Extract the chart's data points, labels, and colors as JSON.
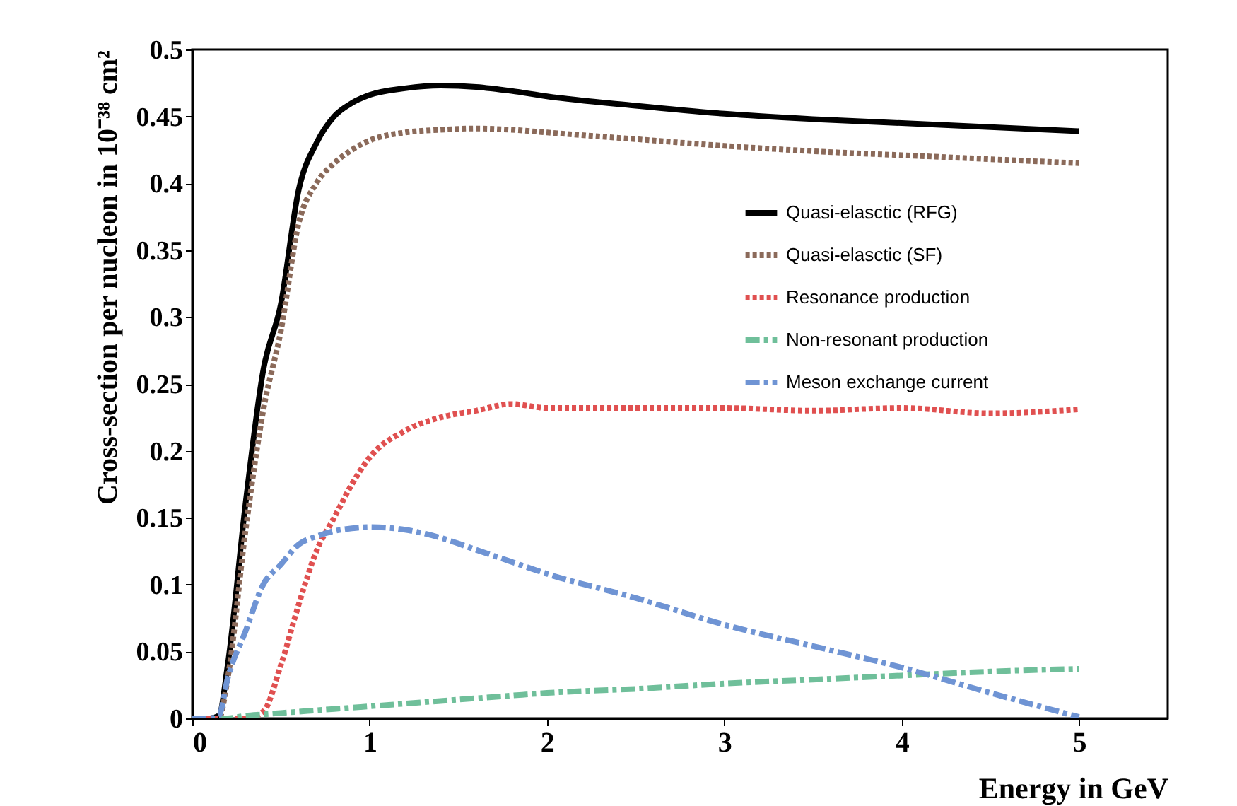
{
  "chart_data": {
    "type": "line",
    "xlabel": "Energy in GeV",
    "ylabel": "Cross-section per nucleon in 10⁻³⁸ cm²",
    "x": [
      0,
      0.1,
      0.15,
      0.2,
      0.3,
      0.4,
      0.5,
      0.6,
      0.7,
      0.8,
      0.9,
      1.0,
      1.2,
      1.4,
      1.6,
      1.8,
      2.0,
      2.5,
      3,
      3.5,
      4,
      4.5,
      5
    ],
    "series": [
      {
        "name": "Quasi-elasctic (RFG)",
        "color": "#000000",
        "line_style": "solid",
        "values": [
          0,
          0,
          0.002,
          0.04,
          0.16,
          0.26,
          0.31,
          0.395,
          0.43,
          0.45,
          0.46,
          0.466,
          0.471,
          0.473,
          0.472,
          0.469,
          0.465,
          0.458,
          0.452,
          0.448,
          0.445,
          0.442,
          0.439
        ]
      },
      {
        "name": "Quasi-elasctic (SF)",
        "color": "#8b6a5a",
        "line_style": "dotted",
        "values": [
          0,
          0,
          0,
          0.03,
          0.14,
          0.23,
          0.29,
          0.37,
          0.4,
          0.415,
          0.425,
          0.432,
          0.438,
          0.44,
          0.441,
          0.44,
          0.438,
          0.433,
          0.428,
          0.424,
          0.421,
          0.418,
          0.415
        ]
      },
      {
        "name": "Resonance production",
        "color": "#e05050",
        "line_style": "dotted",
        "values": [
          0,
          0,
          0,
          0,
          0,
          0.005,
          0.04,
          0.085,
          0.125,
          0.15,
          0.175,
          0.195,
          0.215,
          0.225,
          0.23,
          0.235,
          0.232,
          0.232,
          0.232,
          0.23,
          0.232,
          0.228,
          0.231
        ]
      },
      {
        "name": "Non-resonant production",
        "color": "#6fbf9a",
        "line_style": "dashed",
        "values": [
          0,
          0,
          0,
          0,
          0.002,
          0.003,
          0.004,
          0.005,
          0.006,
          0.007,
          0.008,
          0.009,
          0.011,
          0.013,
          0.015,
          0.017,
          0.019,
          0.022,
          0.026,
          0.029,
          0.032,
          0.035,
          0.037
        ]
      },
      {
        "name": "Meson exchange current",
        "color": "#6f94d4",
        "line_style": "dashed",
        "values": [
          0,
          0,
          0.002,
          0.03,
          0.065,
          0.1,
          0.115,
          0.13,
          0.136,
          0.14,
          0.142,
          0.143,
          0.141,
          0.135,
          0.126,
          0.117,
          0.108,
          0.09,
          0.07,
          0.054,
          0.038,
          0.019,
          0.001
        ]
      }
    ],
    "xlim": [
      0,
      5.5
    ],
    "xticks": [
      0,
      1,
      2,
      3,
      4,
      5
    ],
    "ylim": [
      0,
      0.5
    ],
    "yticks": [
      0,
      0.05,
      0.1,
      0.15,
      0.2,
      0.25,
      0.3,
      0.35,
      0.4,
      0.45,
      0.5
    ],
    "legend": "top right",
    "grid": false
  }
}
